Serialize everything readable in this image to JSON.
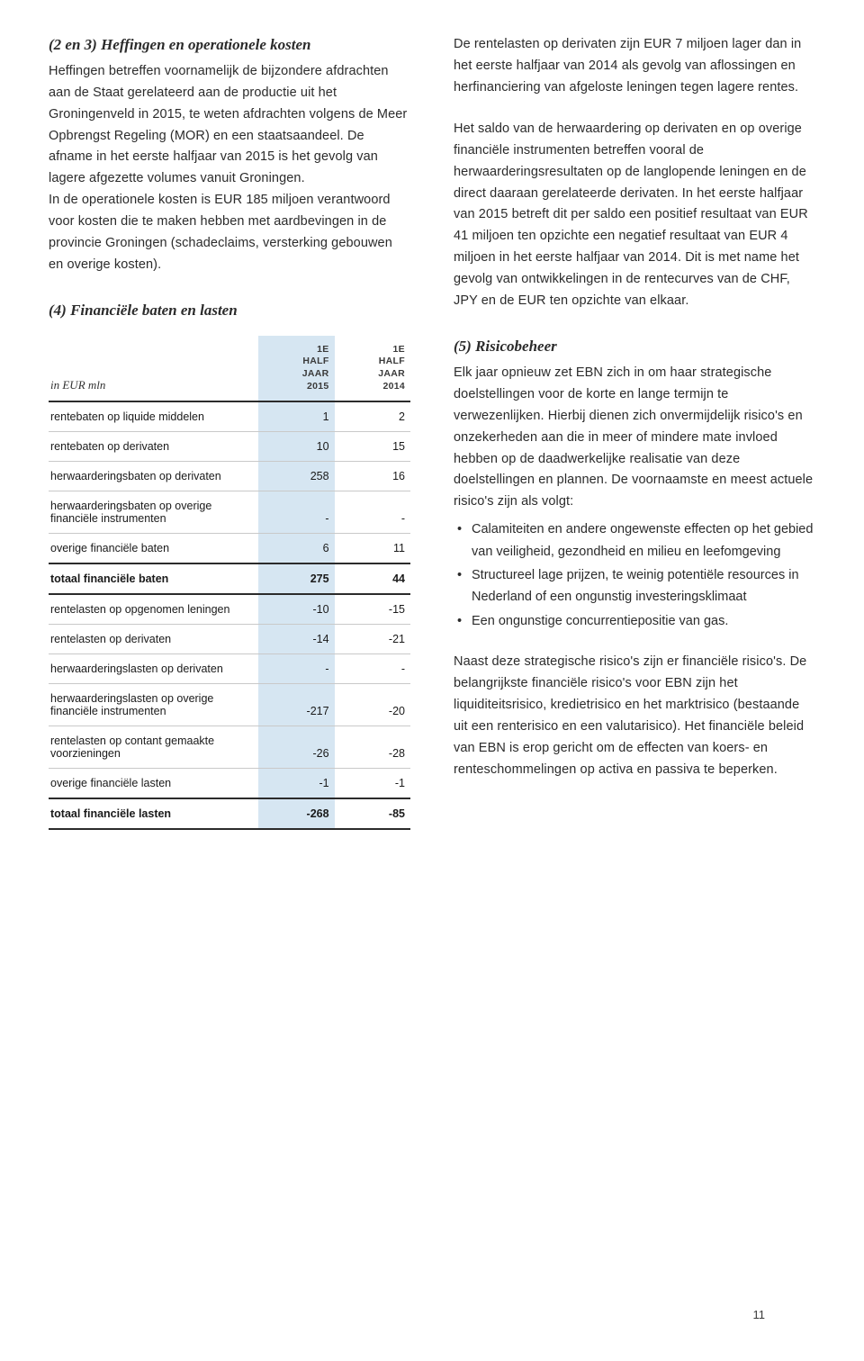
{
  "left": {
    "sec23": {
      "title": "(2 en 3) Heffingen en operationele kosten",
      "p1": "Heffingen betreffen voornamelijk de bijzondere afdrachten aan de Staat gerelateerd aan de productie uit het Groningenveld in 2015, te weten afdrachten volgens de Meer Opbrengst Regeling (MOR) en een staatsaandeel. De afname in het eerste halfjaar van 2015 is het gevolg van lagere afgezette volumes vanuit Groningen.",
      "p2": "In de operationele kosten is EUR 185 miljoen verantwoord voor kosten die te maken hebben met aardbevingen in de provincie Groningen (schadeclaims, versterking gebouwen en overige kosten)."
    },
    "sec4": {
      "title": "(4) Financiële baten en lasten"
    },
    "table": {
      "unit_label": "in EUR mln",
      "col1": "1E\nHALF\nJAAR\n2015",
      "col2": "1E\nHALF\nJAAR\n2014",
      "highlight_color": "#d6e6f2",
      "border_color": "#c9c9c9",
      "heavy_border_color": "#2b2b2b",
      "rows": [
        {
          "label": "rentebaten op liquide middelen",
          "v1": "1",
          "v2": "2",
          "bold": false,
          "heavy": false
        },
        {
          "label": "rentebaten op derivaten",
          "v1": "10",
          "v2": "15",
          "bold": false,
          "heavy": false
        },
        {
          "label": "herwaarderingsbaten op derivaten",
          "v1": "258",
          "v2": "16",
          "bold": false,
          "heavy": false
        },
        {
          "label": "herwaarderingsbaten op overige financiële instrumenten",
          "v1": "-",
          "v2": "-",
          "bold": false,
          "heavy": false
        },
        {
          "label": "overige financiële baten",
          "v1": "6",
          "v2": "11",
          "bold": false,
          "heavy": true
        },
        {
          "label": "totaal financiële baten",
          "v1": "275",
          "v2": "44",
          "bold": true,
          "heavy": true
        },
        {
          "label": "rentelasten op opgenomen leningen",
          "v1": "-10",
          "v2": "-15",
          "bold": false,
          "heavy": false
        },
        {
          "label": "rentelasten op derivaten",
          "v1": "-14",
          "v2": "-21",
          "bold": false,
          "heavy": false
        },
        {
          "label": "herwaarderingslasten op derivaten",
          "v1": "-",
          "v2": "-",
          "bold": false,
          "heavy": false
        },
        {
          "label": "herwaarderingslasten op overige financiële instrumenten",
          "v1": "-217",
          "v2": "-20",
          "bold": false,
          "heavy": false
        },
        {
          "label": "rentelasten op contant gemaakte voorzieningen",
          "v1": "-26",
          "v2": "-28",
          "bold": false,
          "heavy": false
        },
        {
          "label": "overige financiële lasten",
          "v1": "-1",
          "v2": "-1",
          "bold": false,
          "heavy": true
        },
        {
          "label": "totaal financiële lasten",
          "v1": "-268",
          "v2": "-85",
          "bold": true,
          "heavy": true
        }
      ]
    }
  },
  "right": {
    "p1": "De rentelasten op derivaten zijn EUR 7 miljoen lager dan in het eerste halfjaar van 2014 als gevolg van aflossingen en herfinanciering van afgeloste leningen tegen lagere rentes.",
    "p2": "Het saldo van de herwaardering op derivaten en op overige financiële instrumenten betreffen vooral de herwaarderingsresultaten op de langlopende leningen en de direct daaraan gerelateerde derivaten. In het eerste halfjaar van 2015 betreft dit per saldo een positief resultaat van EUR 41 miljoen ten opzichte een negatief resultaat van EUR 4 miljoen in het eerste halfjaar van 2014. Dit is met name het gevolg van ontwikkelingen in de rentecurves van de CHF, JPY en de EUR ten opzichte van elkaar.",
    "sec5": {
      "title": "(5) Risicobeheer",
      "p1": "Elk jaar opnieuw zet EBN zich in om haar strategische doelstellingen voor de korte en lange termijn te verwezenlijken. Hierbij dienen zich onvermijdelijk risico's en onzekerheden aan die in meer of mindere mate invloed hebben op de daadwerkelijke realisatie van deze doelstellingen en plannen. De voornaamste en meest actuele risico's zijn als volgt:",
      "bullets": [
        "Calamiteiten en andere ongewenste effecten op het gebied van veiligheid, gezondheid en milieu en leefomgeving",
        "Structureel lage prijzen, te weinig potentiële resources in Nederland of een ongunstig investeringsklimaat",
        "Een ongunstige concurrentiepositie van gas."
      ],
      "p2": "Naast deze strategische risico's zijn er financiële risico's. De belangrijkste financiële risico's voor EBN zijn het liquiditeitsrisico, kredietrisico en het marktrisico (bestaande uit een renterisico en een valutarisico). Het financiële beleid van EBN is erop gericht om de effecten van koers- en renteschommelingen op activa en passiva te beperken."
    }
  },
  "page_number": "11"
}
